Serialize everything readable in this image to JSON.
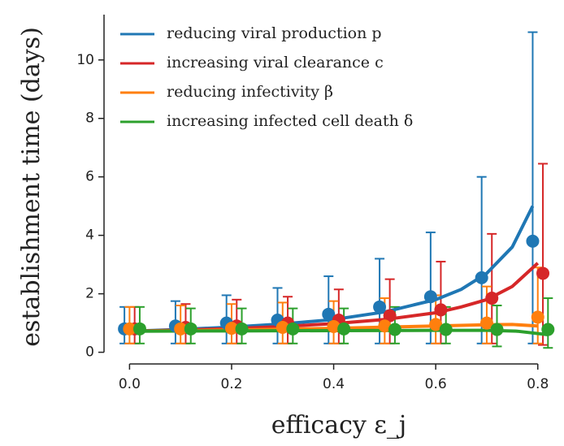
{
  "chart_data": {
    "type": "errorbar",
    "xlabel": "efficacy ε_j",
    "ylabel": "establishment time (days)",
    "xlim": [
      -0.05,
      0.845
    ],
    "ylim": [
      -0.4,
      11.55
    ],
    "xticks": [
      {
        "value": 0,
        "label": "0.0"
      },
      0.2,
      0.4,
      0.6,
      0.8
    ],
    "yticks": [
      0,
      2,
      4,
      6,
      8,
      10
    ],
    "legend": "upper left",
    "series": [
      {
        "name": "reducing viral production p",
        "color": "#1f77b4",
        "x": [
          -0.01,
          0.09,
          0.19,
          0.29,
          0.39,
          0.49,
          0.59,
          0.69,
          0.79
        ],
        "values": [
          0.8,
          0.9,
          1.0,
          1.1,
          1.3,
          1.55,
          1.9,
          2.55,
          3.8
        ],
        "lower": [
          0.3,
          0.3,
          0.3,
          0.3,
          0.3,
          0.3,
          0.3,
          0.3,
          0.3
        ],
        "upper": [
          1.55,
          1.75,
          1.95,
          2.2,
          2.6,
          3.2,
          4.1,
          6.0,
          10.95
        ],
        "fit_x": [
          0,
          0.1,
          0.2,
          0.3,
          0.4,
          0.5,
          0.6,
          0.65,
          0.7,
          0.75,
          0.79
        ],
        "fit_y": [
          0.72,
          0.78,
          0.86,
          0.97,
          1.12,
          1.38,
          1.8,
          2.15,
          2.7,
          3.6,
          5.0
        ]
      },
      {
        "name": "increasing viral clearance c",
        "color": "#d62728",
        "x": [
          0.01,
          0.11,
          0.21,
          0.31,
          0.41,
          0.51,
          0.61,
          0.71,
          0.81
        ],
        "values": [
          0.8,
          0.85,
          0.9,
          1.0,
          1.1,
          1.25,
          1.45,
          1.85,
          2.7
        ],
        "lower": [
          0.3,
          0.3,
          0.3,
          0.3,
          0.3,
          0.3,
          0.3,
          0.3,
          0.25
        ],
        "upper": [
          1.55,
          1.65,
          1.8,
          1.9,
          2.15,
          2.5,
          3.1,
          4.05,
          6.45
        ],
        "fit_x": [
          0,
          0.1,
          0.2,
          0.3,
          0.4,
          0.5,
          0.6,
          0.65,
          0.7,
          0.75,
          0.8
        ],
        "fit_y": [
          0.72,
          0.76,
          0.81,
          0.88,
          0.98,
          1.12,
          1.35,
          1.55,
          1.8,
          2.25,
          3.05
        ]
      },
      {
        "name": "reducing infectivity β",
        "color": "#ff7f0e",
        "x": [
          0,
          0.1,
          0.2,
          0.3,
          0.4,
          0.5,
          0.6,
          0.7,
          0.8
        ],
        "values": [
          0.8,
          0.8,
          0.82,
          0.85,
          0.88,
          0.9,
          0.95,
          1.0,
          1.2
        ],
        "lower": [
          0.3,
          0.3,
          0.3,
          0.3,
          0.3,
          0.3,
          0.3,
          0.3,
          0.3
        ],
        "upper": [
          1.55,
          1.6,
          1.65,
          1.7,
          1.75,
          1.85,
          1.95,
          2.25,
          2.9
        ],
        "fit_x": [
          0,
          0.2,
          0.4,
          0.6,
          0.7,
          0.75,
          0.8
        ],
        "fit_y": [
          0.72,
          0.76,
          0.82,
          0.9,
          0.94,
          0.95,
          0.9
        ]
      },
      {
        "name": "increasing infected cell death δ",
        "color": "#2ca02c",
        "x": [
          0.02,
          0.12,
          0.22,
          0.32,
          0.42,
          0.52,
          0.62,
          0.72,
          0.82
        ],
        "values": [
          0.8,
          0.8,
          0.8,
          0.8,
          0.8,
          0.78,
          0.78,
          0.78,
          0.78
        ],
        "lower": [
          0.3,
          0.3,
          0.3,
          0.3,
          0.3,
          0.3,
          0.3,
          0.2,
          0.15
        ],
        "upper": [
          1.55,
          1.5,
          1.5,
          1.5,
          1.5,
          1.55,
          1.55,
          1.6,
          1.85
        ],
        "fit_x": [
          0,
          0.2,
          0.4,
          0.6,
          0.7,
          0.76,
          0.82
        ],
        "fit_y": [
          0.72,
          0.73,
          0.74,
          0.75,
          0.75,
          0.72,
          0.6
        ]
      }
    ]
  }
}
